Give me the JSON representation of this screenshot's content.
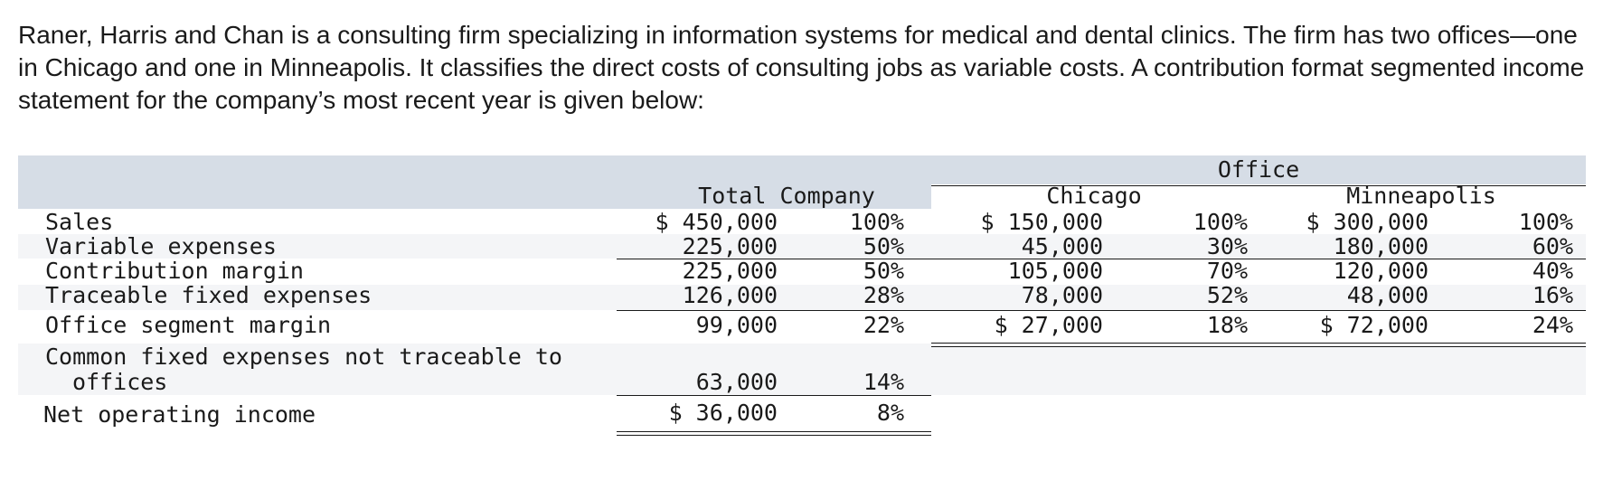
{
  "intro": {
    "text": "Raner, Harris and Chan is a consulting firm specializing in information systems for medical and dental clinics. The firm has two offices—one in Chicago and one in Minneapolis. It classifies the direct costs of consulting jobs as variable costs. A contribution format segmented income statement for the company’s most recent year is given below:"
  },
  "statement": {
    "header": {
      "office_group": "Office",
      "total_company": "Total Company",
      "chicago": "Chicago",
      "minneapolis": "Minneapolis"
    },
    "rows": [
      {
        "label": "Sales",
        "total_amt": "$ 450,000",
        "total_pct": "100%",
        "chi_amt": "$ 150,000",
        "chi_pct": "100%",
        "min_amt": "$ 300,000",
        "min_pct": "100%"
      },
      {
        "label": "Variable expenses",
        "total_amt": "225,000",
        "total_pct": "50%",
        "chi_amt": "45,000",
        "chi_pct": "30%",
        "min_amt": "180,000",
        "min_pct": "60%"
      },
      {
        "label": "Contribution margin",
        "total_amt": "225,000",
        "total_pct": "50%",
        "chi_amt": "105,000",
        "chi_pct": "70%",
        "min_amt": "120,000",
        "min_pct": "40%"
      },
      {
        "label": "Traceable fixed expenses",
        "total_amt": "126,000",
        "total_pct": "28%",
        "chi_amt": "78,000",
        "chi_pct": "52%",
        "min_amt": "48,000",
        "min_pct": "16%"
      },
      {
        "label": "Office segment margin",
        "total_amt": "99,000",
        "total_pct": "22%",
        "chi_amt": "$ 27,000",
        "chi_pct": "18%",
        "min_amt": "$ 72,000",
        "min_pct": "24%"
      },
      {
        "label_line1": "Common fixed expenses not traceable to",
        "label_line2": "offices",
        "total_amt": "63,000",
        "total_pct": "14%"
      },
      {
        "label": "Net operating income",
        "total_amt": "$ 36,000",
        "total_pct": "8%"
      }
    ]
  }
}
